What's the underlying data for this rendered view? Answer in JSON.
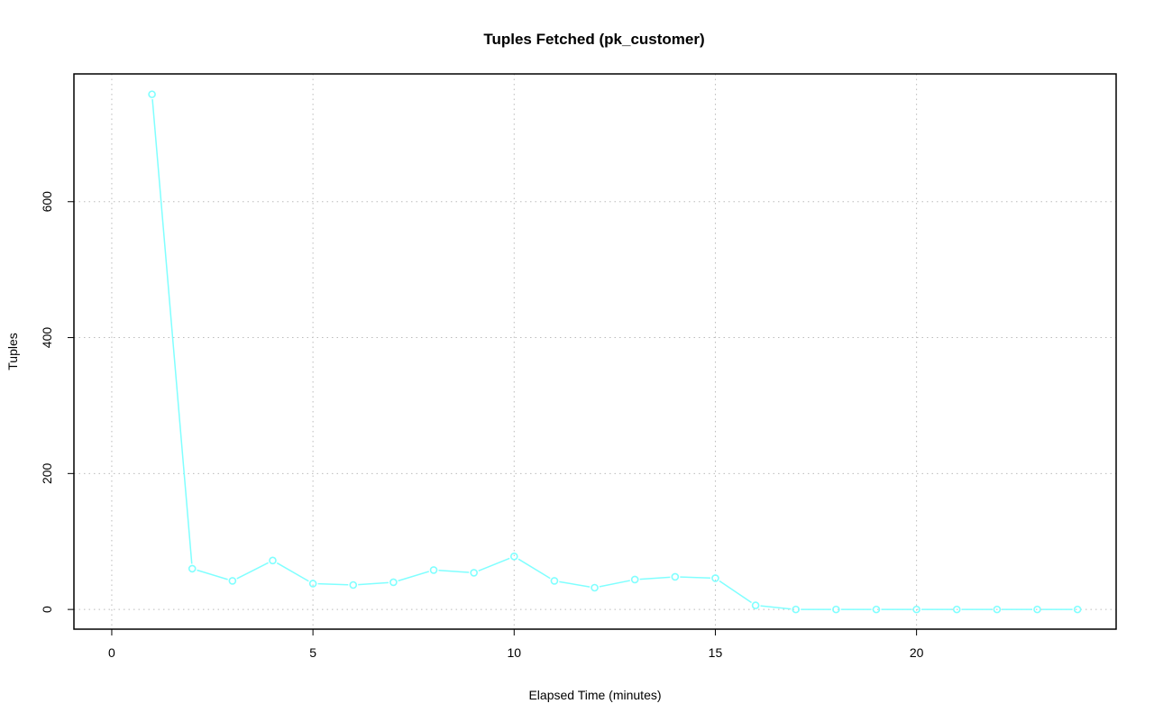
{
  "chart_data": {
    "type": "line",
    "title": "Tuples Fetched (pk_customer)",
    "xlabel": "Elapsed Time (minutes)",
    "ylabel": "Tuples",
    "xlim": [
      -0.94,
      24.96
    ],
    "ylim": [
      -29,
      788
    ],
    "grid": true,
    "xticks": [
      0,
      5,
      10,
      15,
      20
    ],
    "yticks": [
      0,
      200,
      400,
      600
    ],
    "series": [
      {
        "name": "pk_customer",
        "color": "#80FFFF",
        "x": [
          1,
          2,
          3,
          4,
          5,
          6,
          7,
          8,
          9,
          10,
          11,
          12,
          13,
          14,
          15,
          16,
          17,
          18,
          19,
          20,
          21,
          22,
          23,
          24
        ],
        "y": [
          758,
          60,
          42,
          72,
          38,
          36,
          40,
          58,
          54,
          78,
          42,
          32,
          44,
          48,
          46,
          6,
          0,
          0,
          0,
          0,
          0,
          0,
          0,
          0
        ]
      }
    ]
  }
}
